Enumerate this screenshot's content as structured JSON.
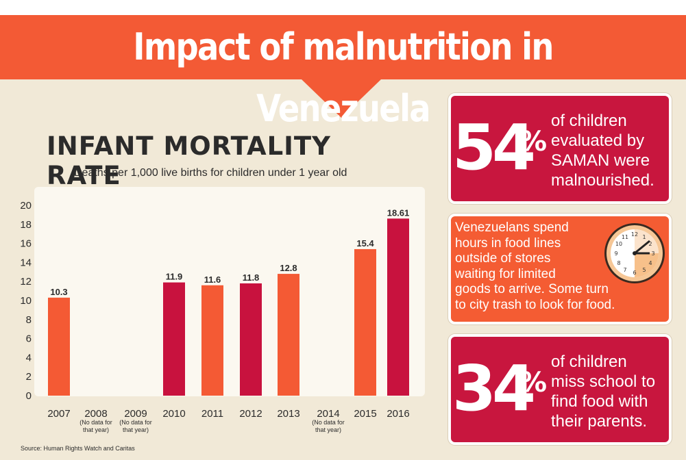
{
  "header": {
    "title": "Impact of malnutrition in Venezuela"
  },
  "chart_data": {
    "type": "bar",
    "title": "INFANT MORTALITY RATE",
    "subtitle": "Deaths per 1,000 live births for children under 1 year old",
    "categories": [
      "2007",
      "2008",
      "2009",
      "2010",
      "2011",
      "2012",
      "2013",
      "2014",
      "2015",
      "2016"
    ],
    "category_notes": [
      "",
      "(No data for that year)",
      "(No data for that year)",
      "",
      "",
      "",
      "",
      "(No data for that year)",
      "",
      ""
    ],
    "values": [
      10.3,
      null,
      null,
      11.9,
      11.6,
      11.8,
      12.8,
      null,
      15.4,
      18.61
    ],
    "value_labels": [
      "10.3",
      "",
      "",
      "11.9",
      "11.6",
      "11.8",
      "12.8",
      "",
      "15.4",
      "18.61"
    ],
    "bar_colors": [
      "#f45a34",
      null,
      null,
      "#c8123e",
      "#f45a34",
      "#c8123e",
      "#f45a34",
      null,
      "#f45a34",
      "#c8123e"
    ],
    "ylim": [
      0,
      20
    ],
    "yticks": [
      "0",
      "2",
      "4",
      "6",
      "8",
      "10",
      "12",
      "14",
      "16",
      "18",
      "20"
    ],
    "grid": false
  },
  "source": "Source: Human Rights Watch and Caritas",
  "stat1": {
    "number": "54",
    "percent": "%",
    "lines": [
      "of children",
      "evaluated by",
      "SAMAN were",
      "malnourished."
    ]
  },
  "food_lines": {
    "lines": [
      "Venezuelans spend",
      "hours in food lines",
      "outside of stores",
      "waiting for limited",
      "goods to arrive. Some turn",
      "to city trash to look for food."
    ],
    "icon": "clock-icon"
  },
  "stat2": {
    "number": "34",
    "percent": "%",
    "lines": [
      "of children",
      "miss school to",
      "find food with",
      "their parents."
    ]
  },
  "colors": {
    "orange": "#f45a34",
    "crimson": "#c8123e",
    "background": "#f1e9d7"
  }
}
